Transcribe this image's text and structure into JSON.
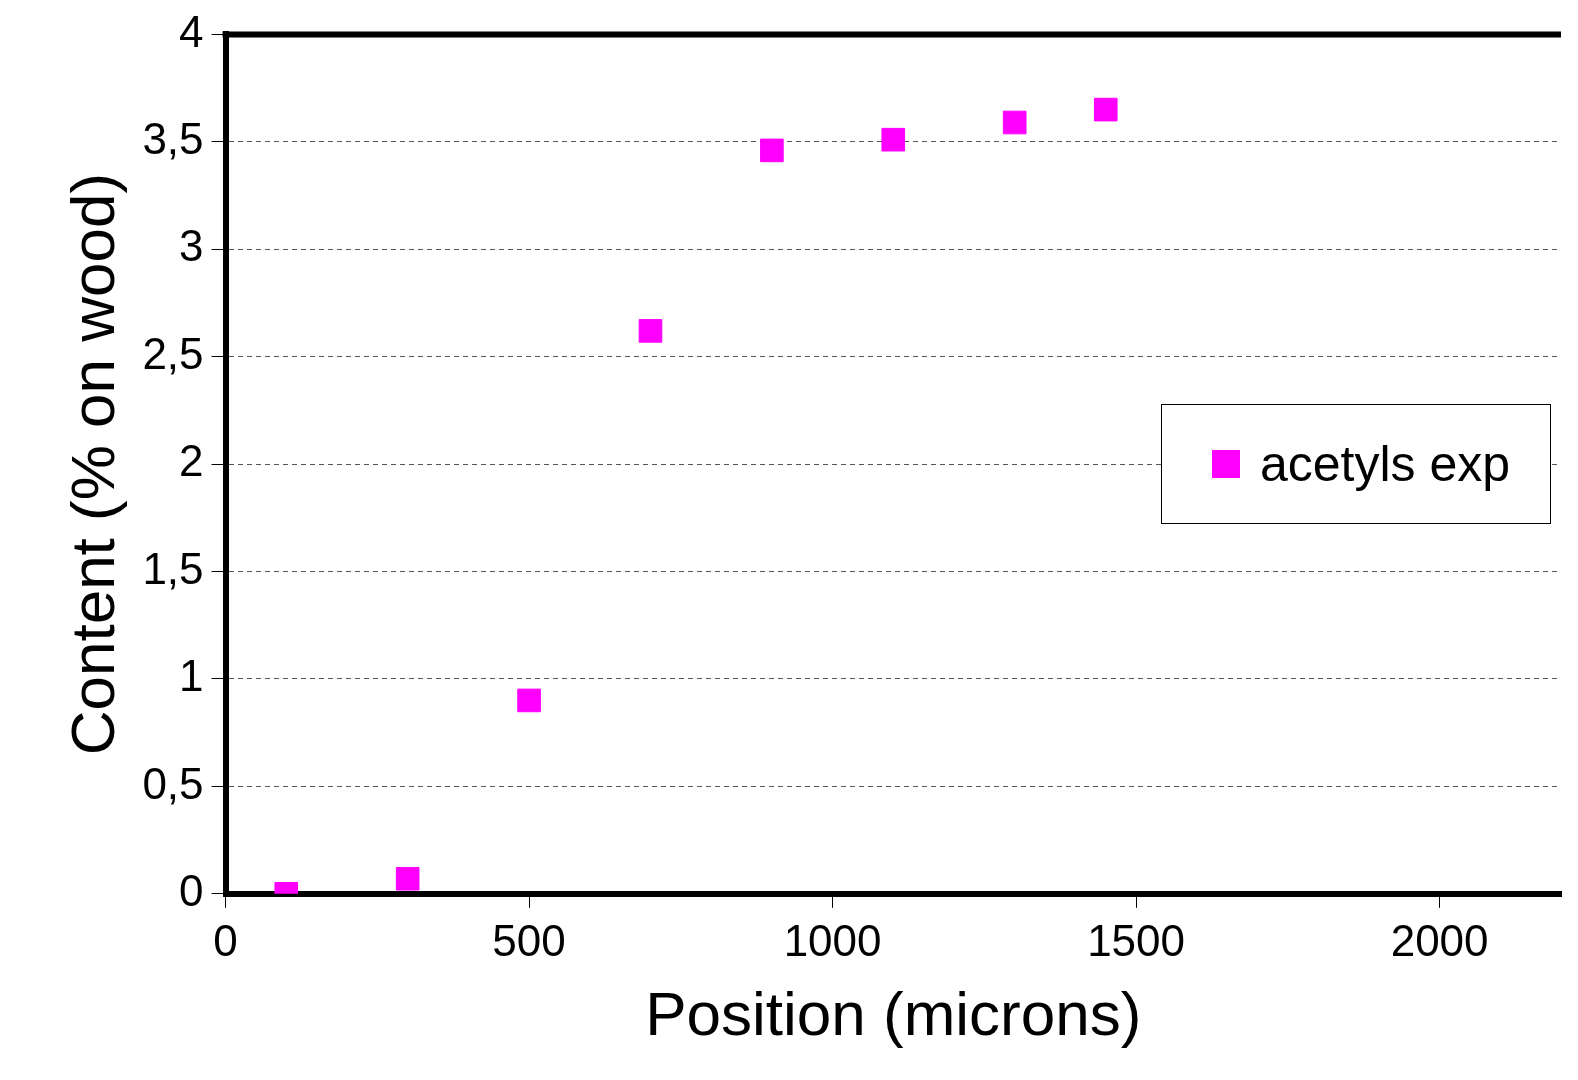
{
  "chart_data": {
    "type": "scatter",
    "xlabel": "Position (microns)",
    "ylabel": "Content (% on wood)",
    "x": [
      100,
      300,
      500,
      700,
      900,
      1100,
      1300,
      1450
    ],
    "series": [
      {
        "name": "acetyls exp",
        "color": "#ff00ff",
        "values": [
          0,
          0.07,
          0.9,
          2.62,
          3.46,
          3.51,
          3.59,
          3.65
        ]
      }
    ],
    "xlim": [
      0,
      2200
    ],
    "xticks": [
      0,
      500,
      1000,
      1500,
      2000
    ],
    "ylim": [
      0,
      4
    ],
    "yticks": [
      0,
      {
        "value": 0.5,
        "label": "0,5"
      },
      1,
      {
        "value": 1.5,
        "label": "1,5"
      },
      2,
      {
        "value": 2.5,
        "label": "2,5"
      },
      3,
      {
        "value": 3.5,
        "label": "3,5"
      },
      4
    ],
    "grid": "y",
    "legend": "right",
    "marker": "square"
  }
}
